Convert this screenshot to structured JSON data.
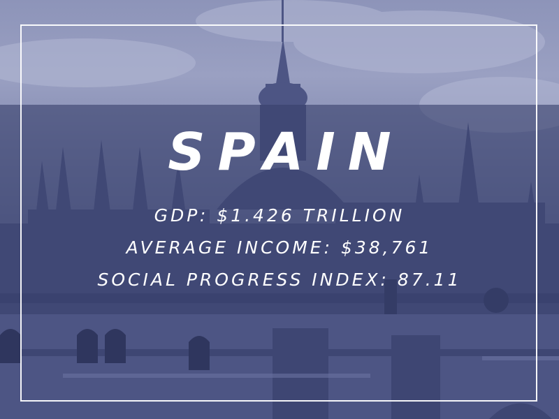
{
  "card": {
    "title": "SPAIN",
    "stats": [
      "GDP: $1.426 TRILLION",
      "AVERAGE INCOME: $38,761",
      "SOCIAL PROGRESS INDEX: 87.11"
    ]
  },
  "colors": {
    "band": "#38406c",
    "frame": "#ffffff",
    "text": "#ffffff",
    "photo_tint": "#6b739e"
  },
  "background": {
    "subject": "cathedral-photo"
  }
}
